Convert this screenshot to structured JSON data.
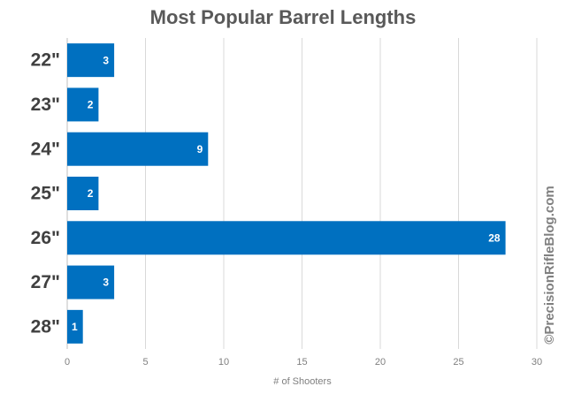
{
  "chart_data": {
    "type": "bar",
    "orientation": "horizontal",
    "title": "Most Popular Barrel Lengths",
    "categories": [
      "22\"",
      "23\"",
      "24\"",
      "25\"",
      "26\"",
      "27\"",
      "28\""
    ],
    "values": [
      3,
      2,
      9,
      2,
      28,
      3,
      1
    ],
    "color": "#0070c0",
    "xlim": [
      0,
      30
    ],
    "xticks": [
      0,
      5,
      10,
      15,
      20,
      25,
      30
    ],
    "xlabel": "# of Shooters",
    "grid": true,
    "watermark": "©PrecisionRifleBlog.com"
  }
}
